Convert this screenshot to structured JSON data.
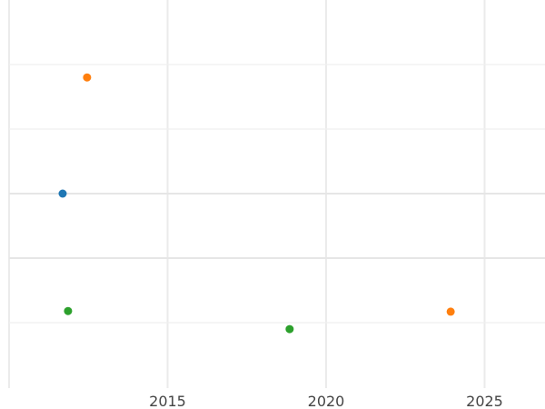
{
  "chart_data": {
    "type": "scatter",
    "title": "",
    "xlabel": "",
    "ylabel": "",
    "xlim": [
      2010,
      2026.9
    ],
    "ylim": [
      -3,
      3
    ],
    "x_ticks": [
      2015,
      2020,
      2025
    ],
    "x_tick_labels": [
      "2015",
      "2020",
      "2025"
    ],
    "grid": true,
    "y_tick_labels_shown": false,
    "points": [
      {
        "x": 2012.46,
        "y": 1.8,
        "color": "#ff7f0e"
      },
      {
        "x": 2011.69,
        "y": 0.0,
        "color": "#1f77b4"
      },
      {
        "x": 2011.86,
        "y": -1.82,
        "color": "#2ca02c"
      },
      {
        "x": 2018.85,
        "y": -2.1,
        "color": "#2ca02c"
      },
      {
        "x": 2023.93,
        "y": -1.83,
        "color": "#ff7f0e"
      }
    ]
  }
}
